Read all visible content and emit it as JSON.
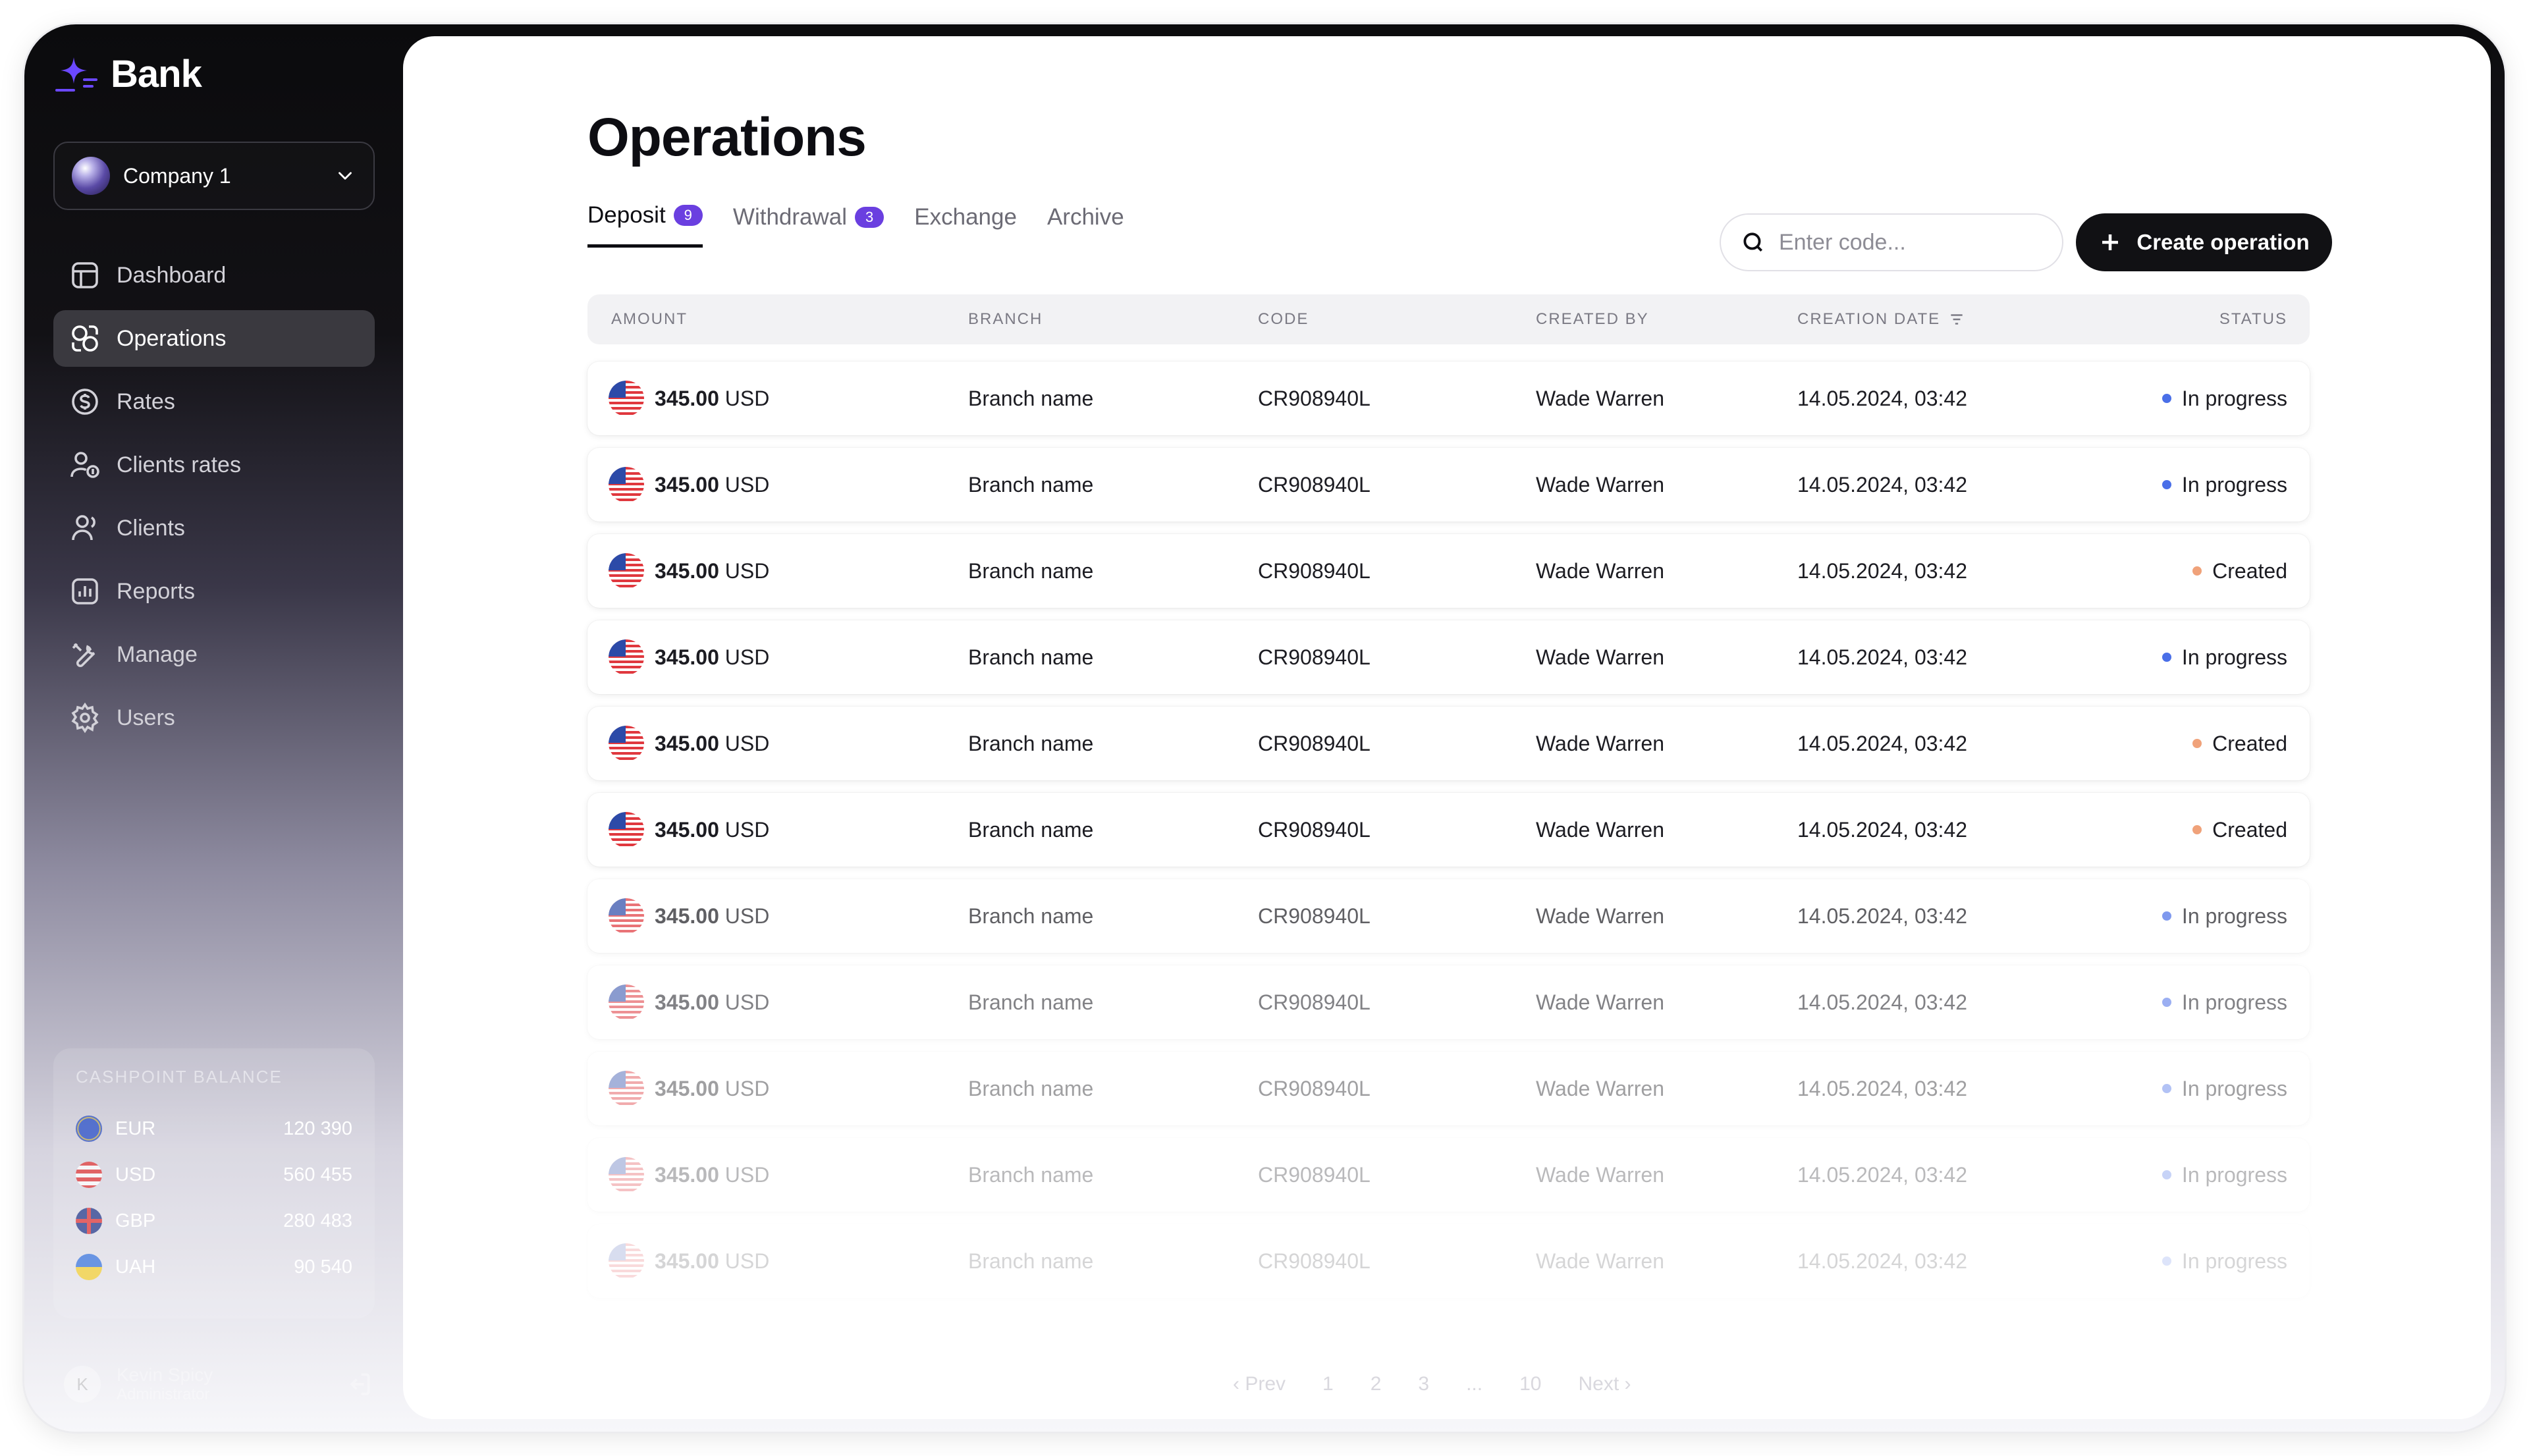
{
  "app": {
    "name": "Bank"
  },
  "company": {
    "name": "Company 1"
  },
  "nav": [
    {
      "label": "Dashboard",
      "icon": "layout-icon",
      "active": false
    },
    {
      "label": "Operations",
      "icon": "operations-icon",
      "active": true
    },
    {
      "label": "Rates",
      "icon": "dollar-circle-icon",
      "active": false
    },
    {
      "label": "Clients rates",
      "icon": "user-dollar-icon",
      "active": false
    },
    {
      "label": "Clients",
      "icon": "users-icon",
      "active": false
    },
    {
      "label": "Reports",
      "icon": "chart-icon",
      "active": false
    },
    {
      "label": "Manage",
      "icon": "tools-icon",
      "active": false
    },
    {
      "label": "Users",
      "icon": "gear-icon",
      "active": false
    }
  ],
  "balance": {
    "title": "CASHPOINT BALANCE",
    "items": [
      {
        "code": "EUR",
        "value": "120 390"
      },
      {
        "code": "USD",
        "value": "560 455"
      },
      {
        "code": "GBP",
        "value": "280 483"
      },
      {
        "code": "UAH",
        "value": "90 540"
      }
    ]
  },
  "user": {
    "name": "Kevin Spicy",
    "role": "Administrator",
    "initial": "K"
  },
  "page": {
    "title": "Operations"
  },
  "tabs": [
    {
      "label": "Deposit",
      "badge": "9",
      "active": true
    },
    {
      "label": "Withdrawal",
      "badge": "3",
      "active": false
    },
    {
      "label": "Exchange",
      "badge": "",
      "active": false
    },
    {
      "label": "Archive",
      "badge": "",
      "active": false
    }
  ],
  "search": {
    "placeholder": "Enter code...",
    "value": ""
  },
  "create_button": {
    "label": "Create operation"
  },
  "table": {
    "columns": [
      "AMOUNT",
      "BRANCH",
      "CODE",
      "CREATED BY",
      "CREATION DATE",
      "STATUS"
    ],
    "rows": [
      {
        "amount": "345.00",
        "currency": "USD",
        "branch": "Branch name",
        "code": "CR908940L",
        "created_by": "Wade Warren",
        "date": "14.05.2024, 03:42",
        "status": "In progress"
      },
      {
        "amount": "345.00",
        "currency": "USD",
        "branch": "Branch name",
        "code": "CR908940L",
        "created_by": "Wade Warren",
        "date": "14.05.2024, 03:42",
        "status": "In progress"
      },
      {
        "amount": "345.00",
        "currency": "USD",
        "branch": "Branch name",
        "code": "CR908940L",
        "created_by": "Wade Warren",
        "date": "14.05.2024, 03:42",
        "status": "Created"
      },
      {
        "amount": "345.00",
        "currency": "USD",
        "branch": "Branch name",
        "code": "CR908940L",
        "created_by": "Wade Warren",
        "date": "14.05.2024, 03:42",
        "status": "In progress"
      },
      {
        "amount": "345.00",
        "currency": "USD",
        "branch": "Branch name",
        "code": "CR908940L",
        "created_by": "Wade Warren",
        "date": "14.05.2024, 03:42",
        "status": "Created"
      },
      {
        "amount": "345.00",
        "currency": "USD",
        "branch": "Branch name",
        "code": "CR908940L",
        "created_by": "Wade Warren",
        "date": "14.05.2024, 03:42",
        "status": "Created"
      },
      {
        "amount": "345.00",
        "currency": "USD",
        "branch": "Branch name",
        "code": "CR908940L",
        "created_by": "Wade Warren",
        "date": "14.05.2024, 03:42",
        "status": "In progress"
      },
      {
        "amount": "345.00",
        "currency": "USD",
        "branch": "Branch name",
        "code": "CR908940L",
        "created_by": "Wade Warren",
        "date": "14.05.2024, 03:42",
        "status": "In progress"
      },
      {
        "amount": "345.00",
        "currency": "USD",
        "branch": "Branch name",
        "code": "CR908940L",
        "created_by": "Wade Warren",
        "date": "14.05.2024, 03:42",
        "status": "In progress"
      },
      {
        "amount": "345.00",
        "currency": "USD",
        "branch": "Branch name",
        "code": "CR908940L",
        "created_by": "Wade Warren",
        "date": "14.05.2024, 03:42",
        "status": "In progress"
      },
      {
        "amount": "345.00",
        "currency": "USD",
        "branch": "Branch name",
        "code": "CR908940L",
        "created_by": "Wade Warren",
        "date": "14.05.2024, 03:42",
        "status": "In progress"
      }
    ]
  },
  "status_colors": {
    "In progress": "#4a6fe8",
    "Created": "#f0a27a"
  },
  "pagination": {
    "prev": "Prev",
    "next": "Next",
    "pages": [
      "1",
      "2",
      "3",
      "...",
      "10"
    ]
  }
}
